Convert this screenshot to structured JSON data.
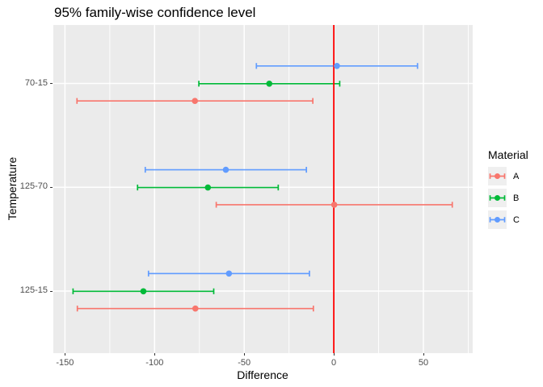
{
  "chart_data": {
    "type": "scatter",
    "title": "95% family-wise confidence level",
    "xlabel": "Difference",
    "ylabel": "Temperature",
    "xlim": [
      -156.5,
      77.5
    ],
    "x_ticks": [
      -150,
      -100,
      -50,
      0,
      50
    ],
    "x_tick_labels": [
      "-150",
      "-100",
      "-50",
      "0",
      "50"
    ],
    "categories": [
      "70-15",
      "125-70",
      "125-15"
    ],
    "grid": true,
    "legend_title": "Material",
    "legend_position": "right",
    "reference_line": {
      "x": 0,
      "color": "#FF0000"
    },
    "series": [
      {
        "name": "A",
        "color": "#F8766D",
        "intervals": [
          {
            "category": "70-15",
            "diff": -77.5,
            "lower": -143.3,
            "upper": -11.7
          },
          {
            "category": "125-70",
            "diff": 0.25,
            "lower": -65.6,
            "upper": 66.1
          },
          {
            "category": "125-15",
            "diff": -77.25,
            "lower": -143.1,
            "upper": -11.4
          }
        ]
      },
      {
        "name": "B",
        "color": "#00BA38",
        "intervals": [
          {
            "category": "70-15",
            "diff": -36.0,
            "lower": -75.3,
            "upper": 3.3
          },
          {
            "category": "125-70",
            "diff": -70.25,
            "lower": -109.5,
            "upper": -31.0
          },
          {
            "category": "125-15",
            "diff": -106.25,
            "lower": -145.5,
            "upper": -67.0
          }
        ]
      },
      {
        "name": "C",
        "color": "#619CFF",
        "intervals": [
          {
            "category": "70-15",
            "diff": 1.75,
            "lower": -43.2,
            "upper": 46.7
          },
          {
            "category": "125-70",
            "diff": -60.25,
            "lower": -105.2,
            "upper": -15.3
          },
          {
            "category": "125-15",
            "diff": -58.5,
            "lower": -103.4,
            "upper": -13.6
          }
        ]
      }
    ]
  },
  "colors": {
    "panel_bg": "#EBEBEB",
    "gridline": "#FFFFFF",
    "tick_text": "#4D4D4D",
    "tick_mark": "#333333",
    "legend_key_bg": "#EFEFEF",
    "background": "#FFFFFF"
  }
}
